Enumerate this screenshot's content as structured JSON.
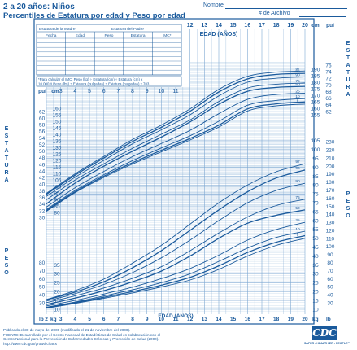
{
  "header": {
    "title": "2 a 20 años: Niños",
    "subtitle": "Percentiles de Estatura por edad y Peso por edad",
    "name_label": "Nombre",
    "record_label": "# de Archivo"
  },
  "record_table": {
    "mother_stature": "Estatura de la Madre",
    "father_stature": "Estatura del Padre",
    "columns": [
      "Fecha",
      "Edad",
      "Peso",
      "Estatura",
      "IMC*"
    ]
  },
  "bmi_note": {
    "line1": "*Para calcular el IMC: Peso (kg) ÷ Estatura (cm) ÷ Estatura (cm) x",
    "line2": "10.000 ó Peso (lbs) ÷ Estatura (pulgadas) ÷ Estatura (pulgadas) x 703"
  },
  "side_labels": {
    "stature": "ESTATURA",
    "weight": "PESO"
  },
  "footer": {
    "line1": "Publicado el 30 de mayo del 2000 (modificado el 21 de noviembre del 2000).",
    "line2": "FUENTE: Desarrollado por el Centro Nacional de Estadísticas de Salud en colaboración con el",
    "line3": "Centro Nacional para la Prevención de Enfermedades Crónicas y Promoción de Salud (2000).",
    "line4": "http://www.cdc.gov/growthcharts"
  },
  "logo": {
    "text": "CDC",
    "tagline": "SAFER • HEALTHIER • PEOPLE™"
  },
  "colors": {
    "ink": "#1a5a9c",
    "grid": "#7fa9d3",
    "paper": "#ffffff"
  },
  "chart_data": {
    "type": "line",
    "xlabel": "EDAD (AÑOS)",
    "x_range": [
      2,
      20
    ],
    "x_ticks": [
      2,
      3,
      4,
      5,
      6,
      7,
      8,
      9,
      10,
      11,
      12,
      13,
      14,
      15,
      16,
      17,
      18,
      19,
      20
    ],
    "stature": {
      "unit_left_top": "pul",
      "unit_left_cm": "cm",
      "unit_right_top": "cm",
      "unit_right_in": "pul",
      "left_cm_ticks": [
        80,
        85,
        90,
        95,
        100,
        105,
        110,
        115,
        120,
        125,
        130,
        135,
        140,
        145,
        150,
        155,
        160
      ],
      "left_in_ticks": [
        30,
        32,
        34,
        36,
        38,
        40,
        42,
        44,
        46,
        48,
        50,
        52,
        54,
        56,
        58,
        60,
        62
      ],
      "right_cm_ticks": [
        155,
        160,
        165,
        170,
        175,
        180,
        185,
        190
      ],
      "right_in_ticks": [
        62,
        64,
        66,
        68,
        70,
        72,
        74,
        76
      ],
      "series": [
        {
          "name": "97",
          "x": [
            2,
            4,
            6,
            8,
            10,
            12,
            14,
            16,
            18,
            20
          ],
          "y": [
            94.6,
            109.6,
            123.0,
            136.0,
            147.0,
            159.5,
            174.5,
            184.5,
            187.8,
            188.6
          ]
        },
        {
          "name": "95",
          "x": [
            2,
            4,
            6,
            8,
            10,
            12,
            14,
            16,
            18,
            20
          ],
          "y": [
            93.9,
            108.6,
            121.8,
            134.5,
            145.3,
            157.7,
            172.5,
            182.5,
            186.0,
            186.8
          ]
        },
        {
          "name": "90",
          "x": [
            2,
            4,
            6,
            8,
            10,
            12,
            14,
            16,
            18,
            20
          ],
          "y": [
            92.3,
            107.0,
            120.0,
            132.7,
            143.4,
            155.0,
            169.5,
            180.0,
            183.0,
            184.0
          ]
        },
        {
          "name": "75",
          "x": [
            2,
            4,
            6,
            8,
            10,
            12,
            14,
            16,
            18,
            20
          ],
          "y": [
            89.7,
            104.8,
            117.3,
            129.3,
            140.0,
            151.0,
            165.2,
            175.5,
            178.5,
            179.4
          ]
        },
        {
          "name": "50",
          "x": [
            2,
            4,
            6,
            8,
            10,
            12,
            14,
            16,
            18,
            20
          ],
          "y": [
            86.5,
            102.5,
            115.5,
            127.0,
            137.8,
            149.5,
            163.0,
            173.0,
            176.0,
            176.8
          ]
        },
        {
          "name": "25",
          "x": [
            2,
            4,
            6,
            8,
            10,
            12,
            14,
            16,
            18,
            20
          ],
          "y": [
            84.1,
            99.0,
            111.5,
            122.9,
            132.9,
            143.0,
            155.8,
            166.8,
            170.6,
            171.6
          ]
        },
        {
          "name": "10",
          "x": [
            2,
            4,
            6,
            8,
            10,
            12,
            14,
            16,
            18,
            20
          ],
          "y": [
            82.3,
            96.9,
            109.0,
            119.8,
            129.5,
            138.9,
            150.0,
            162.3,
            166.0,
            167.5
          ]
        },
        {
          "name": "5",
          "x": [
            2,
            4,
            6,
            8,
            10,
            12,
            14,
            16,
            18,
            20
          ],
          "y": [
            81.5,
            95.9,
            107.8,
            118.2,
            127.7,
            136.8,
            147.0,
            159.5,
            163.4,
            164.9
          ]
        },
        {
          "name": "3",
          "x": [
            2,
            4,
            6,
            8,
            10,
            12,
            14,
            16,
            18,
            20
          ],
          "y": [
            80.8,
            95.2,
            106.9,
            117.2,
            126.5,
            135.6,
            145.5,
            157.9,
            161.9,
            163.2
          ]
        }
      ]
    },
    "weight": {
      "unit_left_kg": "kg",
      "unit_left_lb": "lb",
      "unit_right_kg": "kg",
      "unit_right_lb": "lb",
      "left_kg_ticks": [
        10,
        15,
        20,
        25,
        30,
        35
      ],
      "left_lb_ticks": [
        30,
        40,
        50,
        60,
        70,
        80
      ],
      "right_kg_ticks": [
        10,
        15,
        20,
        25,
        30,
        35,
        40,
        45,
        50,
        55,
        60,
        65,
        70,
        75,
        80,
        85,
        90,
        95,
        100,
        105
      ],
      "right_lb_ticks": [
        30,
        40,
        50,
        60,
        70,
        80,
        90,
        100,
        110,
        120,
        130,
        140,
        150,
        160,
        170,
        180,
        190,
        200,
        210,
        220,
        230
      ],
      "series": [
        {
          "name": "97",
          "x": [
            2,
            4,
            6,
            8,
            10,
            12,
            14,
            16,
            18,
            20
          ],
          "y": [
            15.5,
            20.5,
            27.0,
            36.0,
            46.0,
            58.0,
            70.0,
            80.0,
            87.5,
            92.0
          ]
        },
        {
          "name": "95",
          "x": [
            2,
            4,
            6,
            8,
            10,
            12,
            14,
            16,
            18,
            20
          ],
          "y": [
            15.3,
            19.7,
            25.5,
            33.4,
            43.0,
            54.5,
            66.0,
            76.2,
            84.0,
            88.5
          ]
        },
        {
          "name": "90",
          "x": [
            2,
            4,
            6,
            8,
            10,
            12,
            14,
            16,
            18,
            20
          ],
          "y": [
            14.6,
            18.8,
            24.0,
            30.7,
            39.0,
            49.0,
            60.0,
            70.0,
            77.0,
            81.0
          ]
        },
        {
          "name": "75",
          "x": [
            2,
            4,
            6,
            8,
            10,
            12,
            14,
            16,
            18,
            20
          ],
          "y": [
            13.7,
            17.6,
            22.0,
            27.5,
            34.0,
            43.0,
            53.0,
            62.0,
            68.5,
            72.0
          ]
        },
        {
          "name": "50",
          "x": [
            2,
            4,
            6,
            8,
            10,
            12,
            14,
            16,
            18,
            20
          ],
          "y": [
            12.7,
            16.3,
            20.5,
            25.5,
            31.5,
            40.0,
            50.0,
            58.5,
            63.0,
            66.0
          ]
        },
        {
          "name": "25",
          "x": [
            2,
            4,
            6,
            8,
            10,
            12,
            14,
            16,
            18,
            20
          ],
          "y": [
            11.9,
            15.0,
            18.6,
            22.5,
            27.3,
            33.0,
            40.5,
            49.0,
            55.0,
            59.0
          ]
        },
        {
          "name": "10",
          "x": [
            2,
            4,
            6,
            8,
            10,
            12,
            14,
            16,
            18,
            20
          ],
          "y": [
            11.2,
            14.1,
            17.5,
            21.0,
            25.0,
            30.0,
            37.0,
            44.5,
            50.5,
            54.0
          ]
        },
        {
          "name": "5",
          "x": [
            2,
            4,
            6,
            8,
            10,
            12,
            14,
            16,
            18,
            20
          ],
          "y": [
            10.9,
            13.7,
            16.8,
            20.0,
            23.6,
            28.0,
            34.5,
            42.0,
            47.8,
            51.5
          ]
        },
        {
          "name": "3",
          "x": [
            2,
            4,
            6,
            8,
            10,
            12,
            14,
            16,
            18,
            20
          ],
          "y": [
            10.6,
            13.3,
            16.2,
            19.2,
            22.6,
            26.5,
            32.5,
            40.0,
            46.0,
            50.0
          ]
        }
      ]
    }
  }
}
